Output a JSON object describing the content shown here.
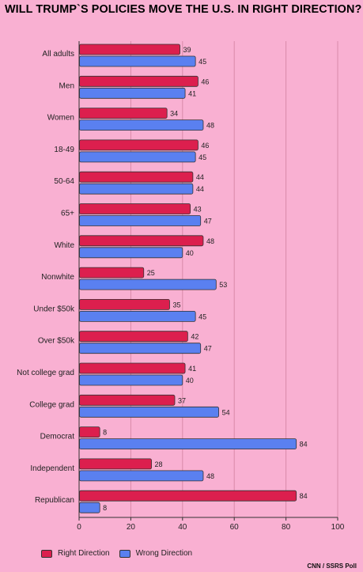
{
  "chart_data": {
    "type": "bar",
    "orientation": "horizontal",
    "title": "WILL TRUMP`S POLICIES MOVE THE U.S. IN RIGHT DIRECTION?",
    "categories": [
      "All adults",
      "Men",
      "Women",
      "18-49",
      "50-64",
      "65+",
      "White",
      "Nonwhite",
      "Under $50k",
      "Over $50k",
      "Not college grad",
      "College grad",
      "Democrat",
      "Independent",
      "Republican"
    ],
    "series": [
      {
        "name": "Right Direction",
        "color": "#dc1f4e",
        "values": [
          39,
          46,
          34,
          46,
          44,
          43,
          48,
          25,
          35,
          42,
          41,
          37,
          8,
          28,
          84
        ]
      },
      {
        "name": "Wrong Direction",
        "color": "#5a80f0",
        "values": [
          45,
          41,
          48,
          45,
          44,
          47,
          40,
          53,
          45,
          47,
          40,
          54,
          84,
          48,
          8
        ]
      }
    ],
    "xlim": [
      0,
      100
    ],
    "xticks": [
      0,
      20,
      40,
      60,
      80,
      100
    ],
    "grid": true,
    "legend_position": "bottom-left"
  },
  "source": "CNN / SSRS Poll"
}
